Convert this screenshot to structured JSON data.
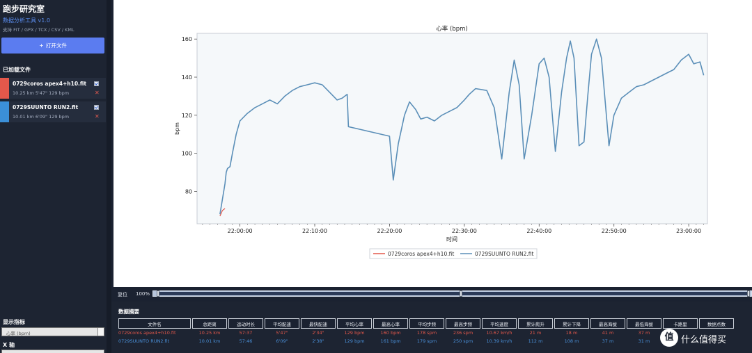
{
  "sidebar": {
    "app_title": "跑步研究室",
    "subtitle": "数据分析工具 v1.0",
    "formats": "支持 FIT / GPX / TCX / CSV / KML",
    "open_button": "打开文件",
    "loaded_label": "已加载文件",
    "files": [
      {
        "name": "0729coros apex4+h10.fit",
        "stats": "10.25 km  5'47\"  129 bpm",
        "color": "#e4584b",
        "checked": true
      },
      {
        "name": "0729SUUNTO RUN2.fit",
        "stats": "10.01 km  6'09\"  129 bpm",
        "color": "#3b8fd8",
        "checked": true
      }
    ],
    "metrics_label": "显示指标",
    "metric_value": "心率 (bpm)",
    "xaxis_label": "X 轴"
  },
  "chart_data": {
    "type": "line",
    "title": "心率 (bpm)",
    "xlabel": "时间",
    "ylabel": "bpm",
    "xticks": [
      "22:00:00",
      "22:10:00",
      "22:20:00",
      "22:30:00",
      "22:40:00",
      "22:50:00",
      "23:00:00"
    ],
    "yticks": [
      80,
      100,
      120,
      140,
      160
    ],
    "ylim": [
      63,
      163
    ],
    "xlim": [
      "21:54:16",
      "23:02:30"
    ],
    "legend_placement": "bottom-center",
    "grid": false,
    "series": [
      {
        "name": "0729coros apex4+h10.fit",
        "color": "#e4584b",
        "points": [
          [
            "21:57:20",
            67
          ],
          [
            "21:57:40",
            70
          ],
          [
            "21:58:00",
            71
          ]
        ]
      },
      {
        "name": "0729SUUNTO RUN2.fit",
        "color": "#5b8fb8",
        "points": [
          [
            "21:57:20",
            68
          ],
          [
            "21:57:40",
            76
          ],
          [
            "21:58:00",
            84
          ],
          [
            "21:58:10",
            90
          ],
          [
            "21:58:20",
            92
          ],
          [
            "21:58:40",
            93
          ],
          [
            "21:59:00",
            100
          ],
          [
            "21:59:30",
            110
          ],
          [
            "22:00:00",
            117
          ],
          [
            "22:01:00",
            121
          ],
          [
            "22:02:00",
            124
          ],
          [
            "22:03:00",
            126
          ],
          [
            "22:04:00",
            128
          ],
          [
            "22:05:00",
            126
          ],
          [
            "22:06:00",
            130
          ],
          [
            "22:07:00",
            133
          ],
          [
            "22:08:00",
            135
          ],
          [
            "22:09:00",
            136
          ],
          [
            "22:10:00",
            137
          ],
          [
            "22:11:00",
            136
          ],
          [
            "22:12:00",
            132
          ],
          [
            "22:13:00",
            128
          ],
          [
            "22:13:40",
            129
          ],
          [
            "22:14:20",
            131
          ],
          [
            "22:14:30",
            114
          ],
          [
            "22:20:00",
            109
          ],
          [
            "22:20:30",
            86
          ],
          [
            "22:21:10",
            105
          ],
          [
            "22:22:00",
            120
          ],
          [
            "22:22:40",
            127
          ],
          [
            "22:23:30",
            123
          ],
          [
            "22:24:10",
            118
          ],
          [
            "22:25:00",
            119
          ],
          [
            "22:26:00",
            117
          ],
          [
            "22:27:00",
            120
          ],
          [
            "22:28:00",
            122
          ],
          [
            "22:29:00",
            124
          ],
          [
            "22:30:00",
            128
          ],
          [
            "22:30:40",
            131
          ],
          [
            "22:31:30",
            134
          ],
          [
            "22:33:00",
            133
          ],
          [
            "22:34:00",
            124
          ],
          [
            "22:35:00",
            97
          ],
          [
            "22:36:00",
            132
          ],
          [
            "22:36:40",
            149
          ],
          [
            "22:37:20",
            136
          ],
          [
            "22:38:00",
            97
          ],
          [
            "22:39:00",
            120
          ],
          [
            "22:40:00",
            147
          ],
          [
            "22:40:40",
            150
          ],
          [
            "22:41:20",
            140
          ],
          [
            "22:42:10",
            101
          ],
          [
            "22:43:00",
            132
          ],
          [
            "22:43:40",
            150
          ],
          [
            "22:44:10",
            159
          ],
          [
            "22:44:40",
            150
          ],
          [
            "22:45:20",
            104
          ],
          [
            "22:46:00",
            106
          ],
          [
            "22:46:30",
            130
          ],
          [
            "22:47:00",
            152
          ],
          [
            "22:47:40",
            160
          ],
          [
            "22:48:20",
            150
          ],
          [
            "22:49:20",
            104
          ],
          [
            "22:50:00",
            120
          ],
          [
            "22:51:00",
            129
          ],
          [
            "22:52:00",
            132
          ],
          [
            "22:53:00",
            135
          ],
          [
            "22:54:00",
            136
          ],
          [
            "22:55:00",
            138
          ],
          [
            "22:56:00",
            140
          ],
          [
            "22:57:00",
            142
          ],
          [
            "22:58:00",
            144
          ],
          [
            "22:59:00",
            149
          ],
          [
            "23:00:00",
            152
          ],
          [
            "23:00:40",
            147
          ],
          [
            "23:01:30",
            148
          ],
          [
            "23:02:00",
            141
          ]
        ]
      }
    ]
  },
  "zoom": {
    "reset_label": "复位",
    "value": "100%"
  },
  "summary": {
    "title": "数据摘要",
    "headers": [
      "文件名",
      "总距离",
      "运动时长",
      "平均配速",
      "最快配速",
      "平均心率",
      "最高心率",
      "平均步频",
      "最高步频",
      "平均速度",
      "累计爬升",
      "累计下降",
      "最高海拔",
      "最低海拔",
      "卡路里",
      "数据点数"
    ],
    "rows": [
      {
        "cells": [
          "0729coros apex4+h10.fit",
          "10.25 km",
          "57:37",
          "5'47\"",
          "2'34\"",
          "129 bpm",
          "160 bpm",
          "178 spm",
          "236 spm",
          "10.67 km/h",
          "21 m",
          "18 m",
          "41 m",
          "37 m",
          "",
          ""
        ],
        "color": "red"
      },
      {
        "cells": [
          "0729SUUNTO RUN2.fit",
          "10.01 km",
          "57:46",
          "6'09\"",
          "2'38\"",
          "129 bpm",
          "161 bpm",
          "179 spm",
          "250 spm",
          "10.39 km/h",
          "112 m",
          "108 m",
          "37 m",
          "31 m",
          "",
          ""
        ],
        "color": "blue"
      }
    ]
  },
  "watermark": {
    "badge": "值",
    "text": "什么值得买"
  }
}
